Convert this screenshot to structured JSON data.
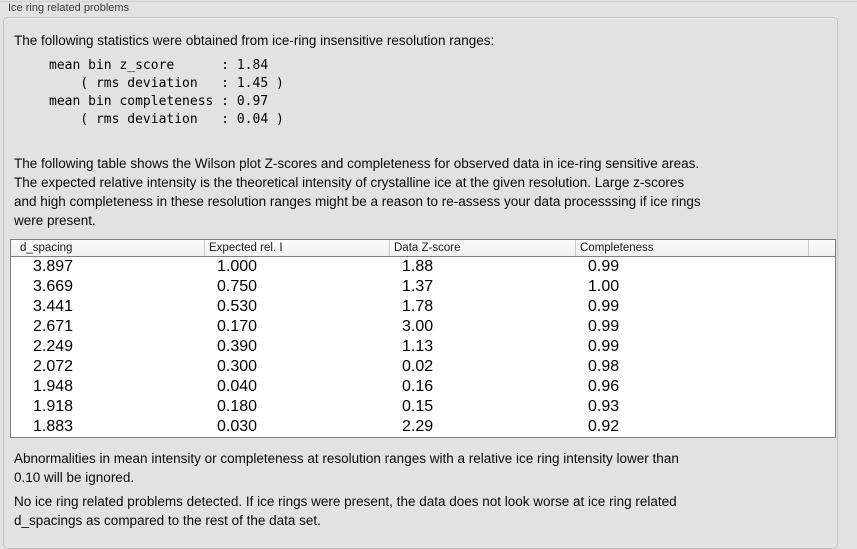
{
  "panel": {
    "title": "Ice ring related problems",
    "stats_intro": "The following statistics were obtained from ice-ring insensitive resolution ranges:",
    "stats_block": "mean bin z_score      : 1.84\n    ( rms deviation   : 1.45 )\nmean bin completeness : 0.97\n    ( rms deviation   : 0.04 )",
    "table_description": "The following table shows the Wilson plot Z-scores and completeness for observed data in ice-ring sensitive areas.\nThe expected relative intensity is the theoretical intensity of crystalline ice at the given resolution. Large z-scores\nand high completeness in these resolution ranges might be a reason to re-assess your data processsing if ice rings\nwere present.",
    "ignore_note": "Abnormalities in mean intensity or completeness at resolution ranges with a relative ice ring intensity lower than\n0.10 will be ignored.",
    "conclusion": "No ice ring related problems detected. If ice rings were present, the data does not look worse at ice ring related\nd_spacings as compared to the rest of the data set."
  },
  "table": {
    "headers": [
      "d_spacing",
      "Expected rel. I",
      "Data Z-score",
      "Completeness",
      ""
    ],
    "rows": [
      [
        "3.897",
        "1.000",
        "1.88",
        "0.99"
      ],
      [
        "3.669",
        "0.750",
        "1.37",
        "1.00"
      ],
      [
        "3.441",
        "0.530",
        "1.78",
        "0.99"
      ],
      [
        "2.671",
        "0.170",
        "3.00",
        "0.99"
      ],
      [
        "2.249",
        "0.390",
        "1.13",
        "0.99"
      ],
      [
        "2.072",
        "0.300",
        "0.02",
        "0.98"
      ],
      [
        "1.948",
        "0.040",
        "0.16",
        "0.96"
      ],
      [
        "1.918",
        "0.180",
        "0.15",
        "0.93"
      ],
      [
        "1.883",
        "0.030",
        "2.29",
        "0.92"
      ]
    ]
  },
  "colors": {
    "background": "#e2e2e2",
    "groupbox_border": "#c5c5c5",
    "table_border": "#7f7f7f",
    "table_header_bg": "#f4f4f4",
    "text": "#000000"
  }
}
